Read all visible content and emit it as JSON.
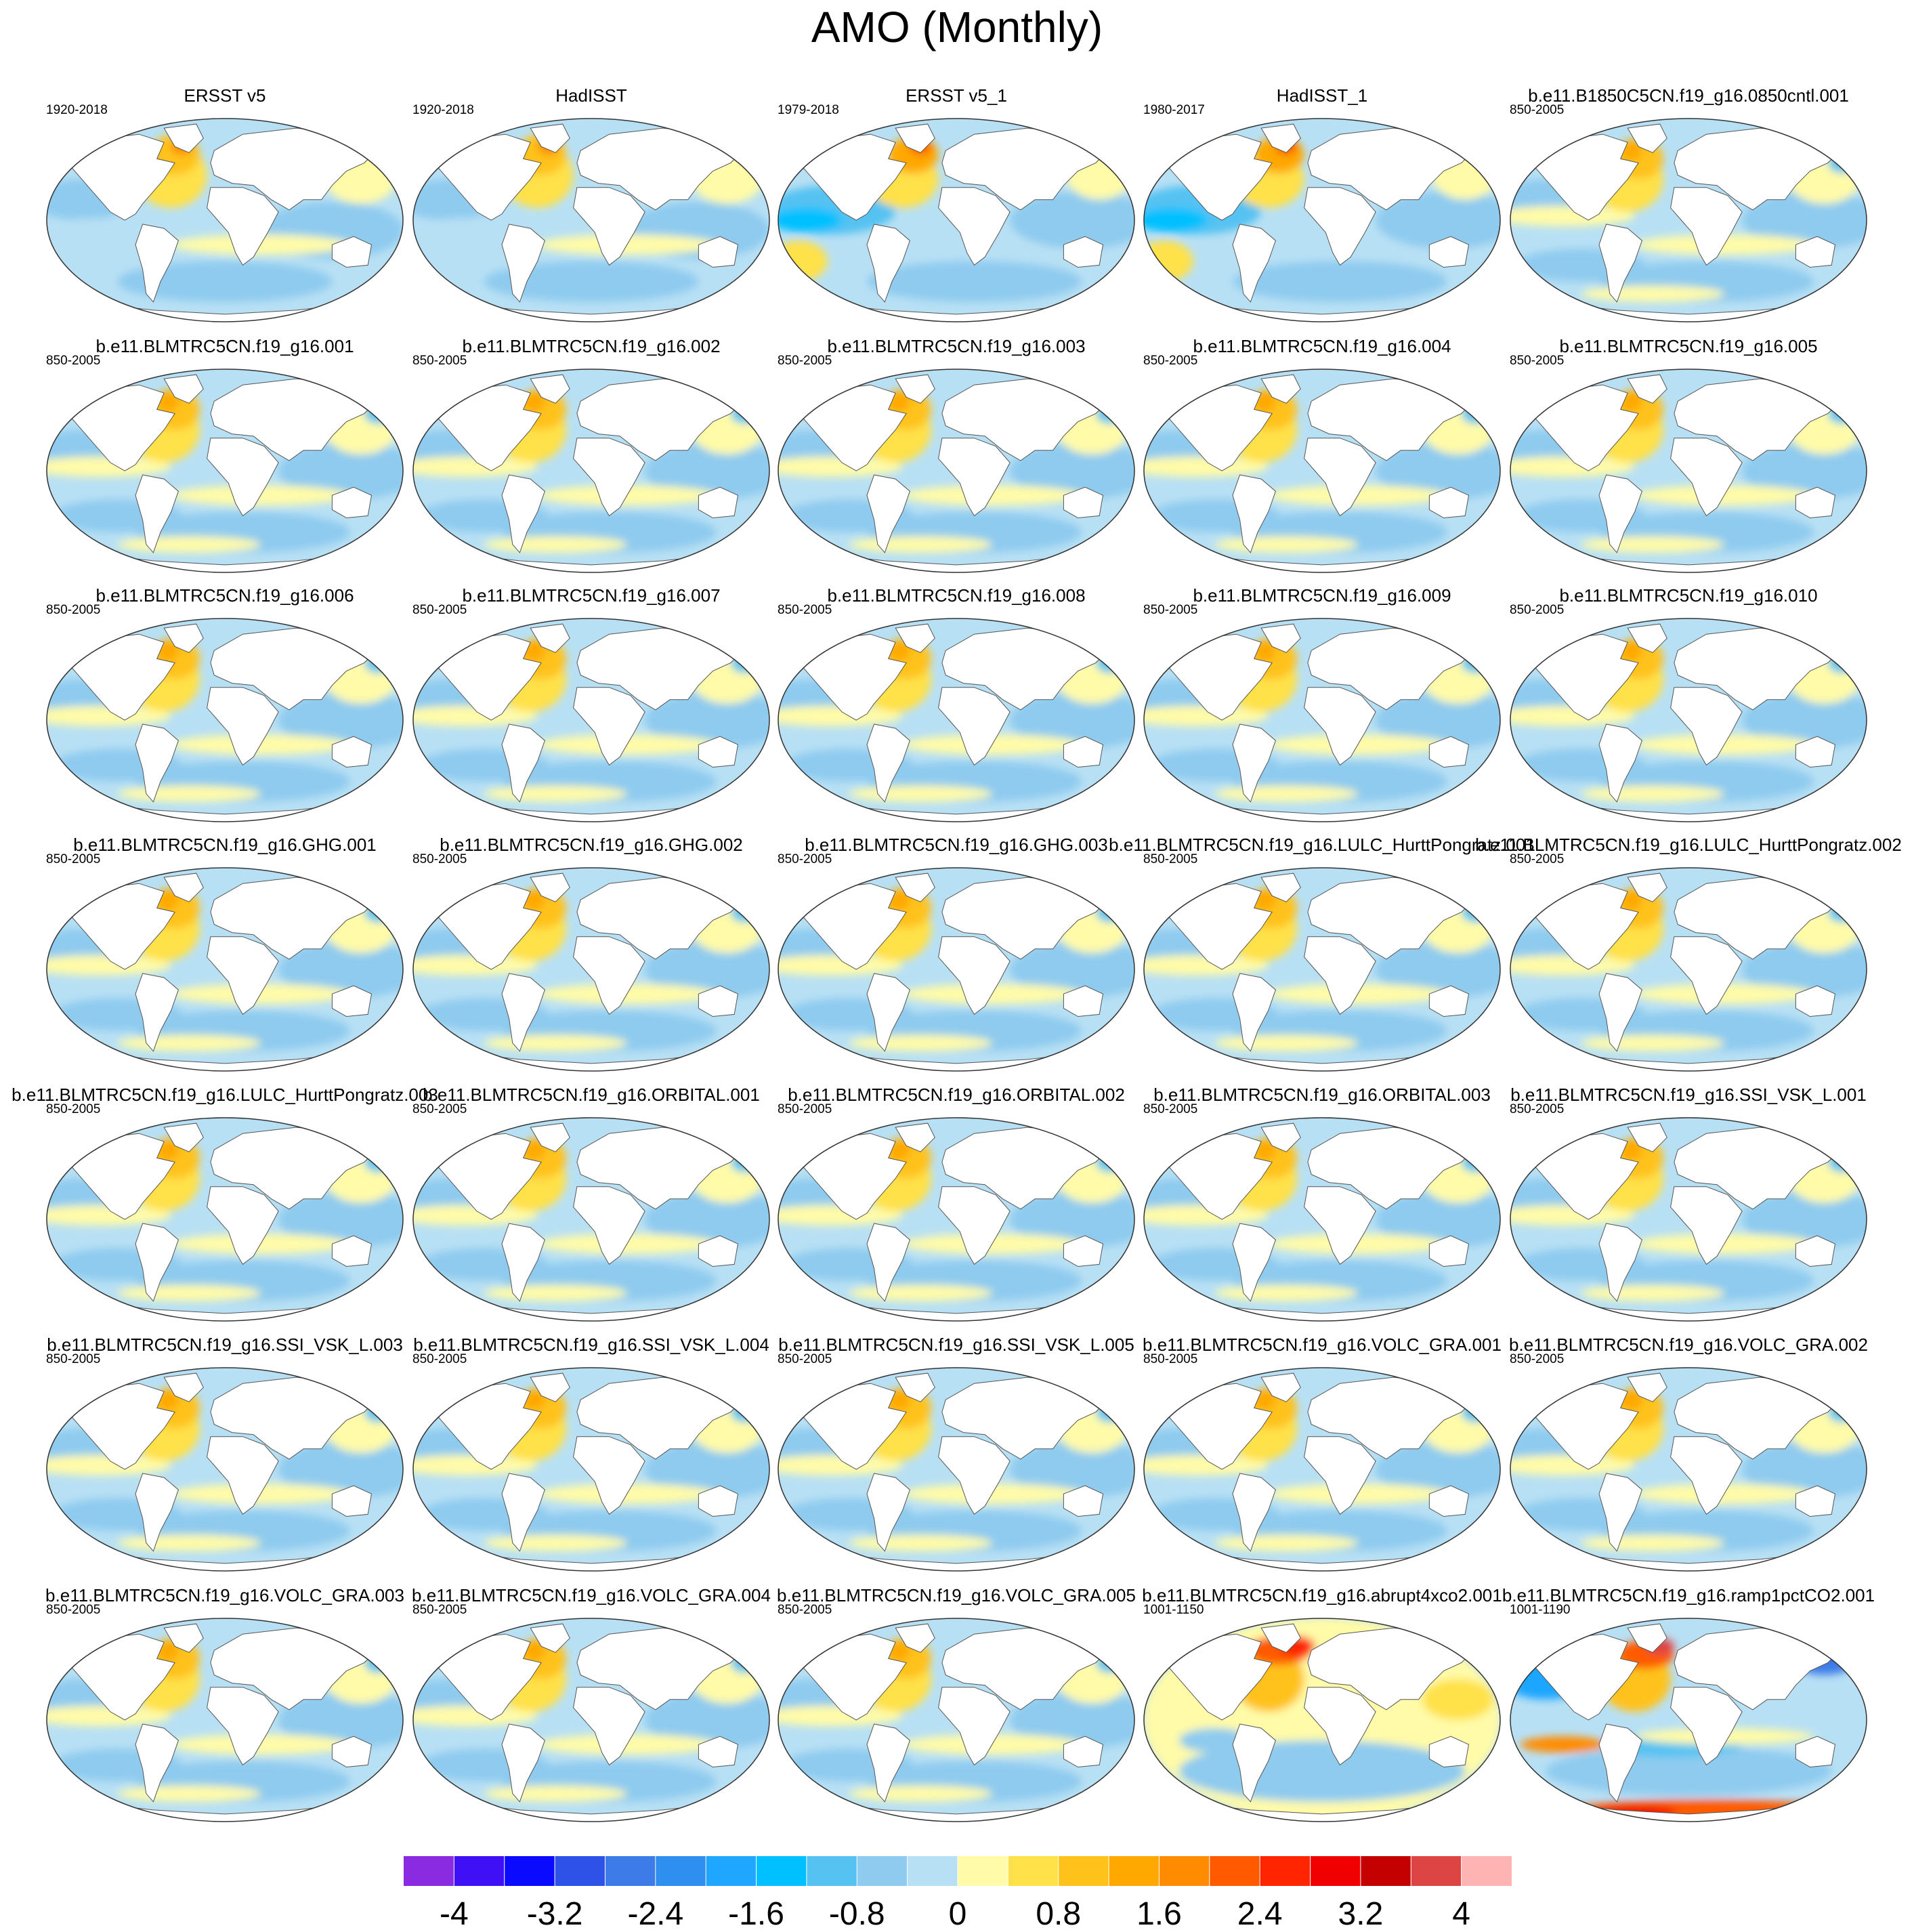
{
  "title": "AMO (Monthly)",
  "colormap": {
    "colors": [
      "#8a2be2",
      "#3f10f5",
      "#0a0aff",
      "#2e52e8",
      "#3d7be8",
      "#2f8ff0",
      "#1fa6ff",
      "#00c0ff",
      "#55c2f2",
      "#8ecbef",
      "#b8e0f4",
      "#fffba8",
      "#ffe14a",
      "#ffc21a",
      "#ffa800",
      "#ff8c00",
      "#ff5a00",
      "#ff2500",
      "#f00000",
      "#c40000",
      "#dd4444",
      "#ffb4b4"
    ],
    "labels": [
      "-4",
      "-3.2",
      "-2.4",
      "-1.6",
      "-0.8",
      "0",
      "0.8",
      "1.6",
      "2.4",
      "3.2",
      "4"
    ]
  },
  "panels": [
    {
      "title": "ERSST v5",
      "period": "1920-2018",
      "style": "obs"
    },
    {
      "title": "HadISST",
      "period": "1920-2018",
      "style": "obs"
    },
    {
      "title": "ERSST v5_1",
      "period": "1979-2018",
      "style": "obs_recent"
    },
    {
      "title": "HadISST_1",
      "period": "1980-2017",
      "style": "obs_recent"
    },
    {
      "title": "b.e11.B1850C5CN.f19_g16.0850cntl.001",
      "period": "850-2005",
      "style": "model"
    },
    {
      "title": "b.e11.BLMTRC5CN.f19_g16.001",
      "period": "850-2005",
      "style": "model"
    },
    {
      "title": "b.e11.BLMTRC5CN.f19_g16.002",
      "period": "850-2005",
      "style": "model"
    },
    {
      "title": "b.e11.BLMTRC5CN.f19_g16.003",
      "period": "850-2005",
      "style": "model"
    },
    {
      "title": "b.e11.BLMTRC5CN.f19_g16.004",
      "period": "850-2005",
      "style": "model"
    },
    {
      "title": "b.e11.BLMTRC5CN.f19_g16.005",
      "period": "850-2005",
      "style": "model"
    },
    {
      "title": "b.e11.BLMTRC5CN.f19_g16.006",
      "period": "850-2005",
      "style": "model"
    },
    {
      "title": "b.e11.BLMTRC5CN.f19_g16.007",
      "period": "850-2005",
      "style": "model"
    },
    {
      "title": "b.e11.BLMTRC5CN.f19_g16.008",
      "period": "850-2005",
      "style": "model"
    },
    {
      "title": "b.e11.BLMTRC5CN.f19_g16.009",
      "period": "850-2005",
      "style": "model"
    },
    {
      "title": "b.e11.BLMTRC5CN.f19_g16.010",
      "period": "850-2005",
      "style": "model"
    },
    {
      "title": "b.e11.BLMTRC5CN.f19_g16.GHG.001",
      "period": "850-2005",
      "style": "model"
    },
    {
      "title": "b.e11.BLMTRC5CN.f19_g16.GHG.002",
      "period": "850-2005",
      "style": "model"
    },
    {
      "title": "b.e11.BLMTRC5CN.f19_g16.GHG.003",
      "period": "850-2005",
      "style": "model"
    },
    {
      "title": "b.e11.BLMTRC5CN.f19_g16.LULC_HurttPongratz.001",
      "period": "850-2005",
      "style": "model"
    },
    {
      "title": "b.e11.BLMTRC5CN.f19_g16.LULC_HurttPongratz.002",
      "period": "850-2005",
      "style": "model"
    },
    {
      "title": "b.e11.BLMTRC5CN.f19_g16.LULC_HurttPongratz.003",
      "period": "850-2005",
      "style": "model"
    },
    {
      "title": "b.e11.BLMTRC5CN.f19_g16.ORBITAL.001",
      "period": "850-2005",
      "style": "model"
    },
    {
      "title": "b.e11.BLMTRC5CN.f19_g16.ORBITAL.002",
      "period": "850-2005",
      "style": "model"
    },
    {
      "title": "b.e11.BLMTRC5CN.f19_g16.ORBITAL.003",
      "period": "850-2005",
      "style": "model"
    },
    {
      "title": "b.e11.BLMTRC5CN.f19_g16.SSI_VSK_L.001",
      "period": "850-2005",
      "style": "model"
    },
    {
      "title": "b.e11.BLMTRC5CN.f19_g16.SSI_VSK_L.003",
      "period": "850-2005",
      "style": "model"
    },
    {
      "title": "b.e11.BLMTRC5CN.f19_g16.SSI_VSK_L.004",
      "period": "850-2005",
      "style": "model"
    },
    {
      "title": "b.e11.BLMTRC5CN.f19_g16.SSI_VSK_L.005",
      "period": "850-2005",
      "style": "model"
    },
    {
      "title": "b.e11.BLMTRC5CN.f19_g16.VOLC_GRA.001",
      "period": "850-2005",
      "style": "model"
    },
    {
      "title": "b.e11.BLMTRC5CN.f19_g16.VOLC_GRA.002",
      "period": "850-2005",
      "style": "model"
    },
    {
      "title": "b.e11.BLMTRC5CN.f19_g16.VOLC_GRA.003",
      "period": "850-2005",
      "style": "model"
    },
    {
      "title": "b.e11.BLMTRC5CN.f19_g16.VOLC_GRA.004",
      "period": "850-2005",
      "style": "model"
    },
    {
      "title": "b.e11.BLMTRC5CN.f19_g16.VOLC_GRA.005",
      "period": "850-2005",
      "style": "model"
    },
    {
      "title": "b.e11.BLMTRC5CN.f19_g16.abrupt4xco2.001",
      "period": "1001-1150",
      "style": "warm"
    },
    {
      "title": "b.e11.BLMTRC5CN.f19_g16.ramp1pctCO2.001",
      "period": "1001-1190",
      "style": "strong"
    }
  ],
  "chart_data": {
    "type": "heatmap",
    "title": "AMO (Monthly)",
    "colorbar_ticks": [
      -4,
      -3.2,
      -2.4,
      -1.6,
      -0.8,
      0,
      0.8,
      1.6,
      2.4,
      3.2,
      4
    ],
    "colorbar_range": [
      -4.4,
      4.4
    ],
    "panel_count": 35,
    "layout": "7 rows x 5 columns of global maps"
  }
}
